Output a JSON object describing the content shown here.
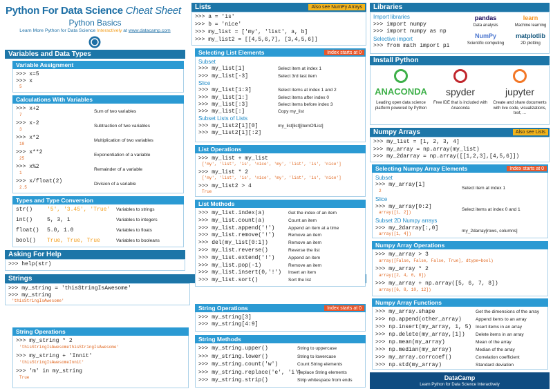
{
  "header": {
    "title": "Python For Data Science",
    "title_italic": "Cheat Sheet",
    "subtitle": "Python Basics",
    "tagline": "Learn More Python for Data Science",
    "tagline_link": "Interactively",
    "at": "at",
    "url": "www.datacamp.com"
  },
  "sections": [
    {
      "title": "Variables and Data Types",
      "rows": []
    },
    {
      "title": "Variable Assignment",
      "rows": [
        {
          "code": ">>> x=5"
        },
        {
          "code": ">>> x",
          "out": "5"
        }
      ]
    },
    {
      "title": "Calculations With Variables",
      "rows": [
        {
          "code": ">>> x+2",
          "out": "7",
          "desc": "Sum of two variables"
        },
        {
          "code": ">>> x-2",
          "out": "3",
          "desc": "Subtraction of two variables"
        },
        {
          "code": ">>> x*2",
          "out": "10",
          "desc": "Multiplication of two variables"
        },
        {
          "code": ">>> x**2",
          "out": "25",
          "desc": "Exponentiation of a variable"
        },
        {
          "code": ">>> x%2",
          "out": "1",
          "desc": "Remainder of a variable"
        },
        {
          "code": ">>> x/float(2)",
          "out": "2.5",
          "desc": "Division of a variable"
        }
      ]
    },
    {
      "title": "Types and Type Conversion",
      "rows": [
        {
          "code": "str()",
          "arg": "'5', '3.45', 'True'",
          "desc": "Variables to strings"
        },
        {
          "code": "int()",
          "arg": "5, 3, 1",
          "desc": "Variables to integers"
        },
        {
          "code": "float()",
          "arg": "5.0, 1.0",
          "desc": "Variables to floats"
        },
        {
          "code": "bool()",
          "arg": "True, True, True",
          "desc": "Variables to booleans"
        }
      ]
    },
    {
      "title": "Asking For Help",
      "rows": [
        {
          "code": ">>> help(str)"
        }
      ]
    },
    {
      "title": "Strings",
      "rows": [
        {
          "code": ">>> my_string = 'thisStringIsAwesome'"
        },
        {
          "code": ">>> my_string",
          "out": "'thisStringIsAwesome'"
        }
      ]
    },
    {
      "title": "String Operations",
      "rows": [
        {
          "code": ">>> my_string * 2",
          "out": "'thisStringIsAwesomethisStringIsAwesome'"
        },
        {
          "code": ">>> my_string + 'Innit'",
          "out": "'thisStringIsAwesomeInnit'"
        },
        {
          "code": ">>> 'm' in my_string",
          "out": "True"
        }
      ]
    },
    {
      "title": "Lists",
      "tag": "Also see NumPy Arrays",
      "tag_color": "#f4b41a",
      "rows": [
        {
          "code": ">>> a = 'is'"
        },
        {
          "code": ">>> b = 'nice'"
        },
        {
          "code": ">>> my_list = ['my', 'list', a, b]"
        },
        {
          "code": ">>> my_list2 = [[4,5,6,7], [3,4,5,6]]"
        }
      ]
    },
    {
      "title": "Selecting List Elements",
      "tag": "Index starts at 0",
      "tag_color": "#e8572b",
      "rows": [
        {
          "sub": "Subset"
        },
        {
          "code": ">>> my_list[1]",
          "desc": "Select item at index 1"
        },
        {
          "code": ">>> my_list[-3]",
          "desc": "Select 3rd last item"
        },
        {
          "sub": "Slice"
        },
        {
          "code": ">>> my_list[1:3]",
          "desc": "Select items at index 1 and 2"
        },
        {
          "code": ">>> my_list[1:]",
          "desc": "Select items after index 0"
        },
        {
          "code": ">>> my_list[:3]",
          "desc": "Select items before index 3"
        },
        {
          "code": ">>> my_list[:]",
          "desc": "Copy my_list"
        },
        {
          "sub": "Subset Lists of Lists"
        },
        {
          "code": ">>> my_list2[1][0]",
          "desc": "my_list[list][itemOfList]"
        },
        {
          "code": ">>> my_list2[1][:2]"
        }
      ]
    },
    {
      "title": "List Operations",
      "rows": [
        {
          "code": ">>> my_list + my_list",
          "out": "['my', 'list', 'is', 'nice', 'my', 'list', 'is', 'nice']"
        },
        {
          "code": ">>> my_list * 2",
          "out": "['my', 'list', 'is', 'nice', 'my', 'list', 'is', 'nice']"
        },
        {
          "code": ">>> my_list2 > 4",
          "out": "True"
        }
      ]
    },
    {
      "title": "List Methods",
      "rows": [
        {
          "code": ">>> my_list.index(a)",
          "desc": "Get the index of an item"
        },
        {
          "code": ">>> my_list.count(a)",
          "desc": "Count an item"
        },
        {
          "code": ">>> my_list.append('!')",
          "desc": "Append an item at a time"
        },
        {
          "code": ">>> my_list.remove('!')",
          "desc": "Remove an item"
        },
        {
          "code": ">>> del(my_list[0:1])",
          "desc": "Remove an item"
        },
        {
          "code": ">>> my_list.reverse()",
          "desc": "Reverse the list"
        },
        {
          "code": ">>> my_list.extend('!')",
          "desc": "Append an item"
        },
        {
          "code": ">>> my_list.pop(-1)",
          "desc": "Remove an item"
        },
        {
          "code": ">>> my_list.insert(0,'!')",
          "desc": "Insert an item"
        },
        {
          "code": ">>> my_list.sort()",
          "desc": "Sort the list"
        }
      ]
    },
    {
      "title": "String Operations",
      "tag": "Index starts at 0",
      "tag_color": "#e8572b",
      "rows": [
        {
          "code": ">>> my_string[3]"
        },
        {
          "code": ">>> my_string[4:9]"
        }
      ]
    },
    {
      "title": "String Methods",
      "rows": [
        {
          "code": ">>> my_string.upper()",
          "desc": "String to uppercase"
        },
        {
          "code": ">>> my_string.lower()",
          "desc": "String to lowercase"
        },
        {
          "code": ">>> my_string.count('w')",
          "desc": "Count String elements"
        },
        {
          "code": ">>> my_string.replace('e', 'i')",
          "desc": "Replace String elements"
        },
        {
          "code": ">>> my_string.strip()",
          "desc": "Strip whitespace from ends"
        }
      ]
    },
    {
      "title": "Libraries",
      "rows": [
        {
          "sub": "Import libraries"
        },
        {
          "code": ">>> import numpy"
        },
        {
          "code": ">>> import numpy as np"
        },
        {
          "sub": "Selective import"
        },
        {
          "code": ">>> from math import pi"
        }
      ],
      "logos": [
        {
          "name": "pandas",
          "caption": "Data analysis"
        },
        {
          "name": "learn",
          "caption": "Machine learning"
        },
        {
          "name": "NumPy",
          "caption": "Scientific computing"
        },
        {
          "name": "matplotlib",
          "caption": "2D plotting"
        }
      ]
    },
    {
      "title": "Install Python",
      "rows": [],
      "tools": [
        {
          "name": "ANACONDA",
          "caption": "Leading open data science platform powered by Python"
        },
        {
          "name": "spyder",
          "caption": "Free IDE that is included with Anaconda"
        },
        {
          "name": "jupyter",
          "caption": "Create and share documents with live code, visualizations, text, ..."
        }
      ]
    },
    {
      "title": "Numpy Arrays",
      "tag": "Also see Lists",
      "tag_color": "#f4b41a",
      "rows": [
        {
          "code": ">>> my_list = [1, 2, 3, 4]"
        },
        {
          "code": ">>> my_array = np.array(my_list)"
        },
        {
          "code": ">>> my_2darray = np.array([[1,2,3],[4,5,6]])"
        }
      ]
    },
    {
      "title": "Selecting Numpy Array Elements",
      "tag": "Index starts at 0",
      "tag_color": "#e8572b",
      "rows": [
        {
          "sub": "Subset"
        },
        {
          "code": ">>> my_array[1]",
          "desc": "Select item at index 1",
          "out": "2"
        },
        {
          "sub": "Slice"
        },
        {
          "code": ">>> my_array[0:2]",
          "desc": "Select items at index 0 and 1",
          "out": "array([1, 2])"
        },
        {
          "sub": "Subset 2D Numpy arrays"
        },
        {
          "code": ">>> my_2darray[:,0]",
          "desc": "my_2darray[rows, columns]",
          "out": "array([1, 4])"
        }
      ]
    },
    {
      "title": "Numpy Array Operations",
      "rows": [
        {
          "code": ">>> my_array > 3",
          "out": "array([False, False, False,  True], dtype=bool)"
        },
        {
          "code": ">>> my_array * 2",
          "out": "array([2, 4, 6, 8])"
        },
        {
          "code": ">>> my_array + np.array([5, 6, 7, 8])",
          "out": "array([6, 8, 10, 12])"
        }
      ]
    },
    {
      "title": "Numpy Array Functions",
      "rows": [
        {
          "code": ">>> my_array.shape",
          "desc": "Get the dimensions of the array"
        },
        {
          "code": ">>> np.append(other_array)",
          "desc": "Append items to an array"
        },
        {
          "code": ">>> np.insert(my_array, 1, 5)",
          "desc": "Insert items in an array"
        },
        {
          "code": ">>> np.delete(my_array,[1])",
          "desc": "Delete items in an array"
        },
        {
          "code": ">>> np.mean(my_array)",
          "desc": "Mean of the array"
        },
        {
          "code": ">>> np.median(my_array)",
          "desc": "Median of the array"
        },
        {
          "code": ">>> my_array.corrcoef()",
          "desc": "Correlation coefficient"
        },
        {
          "code": ">>> np.std(my_array)",
          "desc": "Standard deviation"
        }
      ]
    }
  ],
  "footer": {
    "brand": "DataCamp",
    "tagline": "Learn Python for Data Science Interactively"
  }
}
